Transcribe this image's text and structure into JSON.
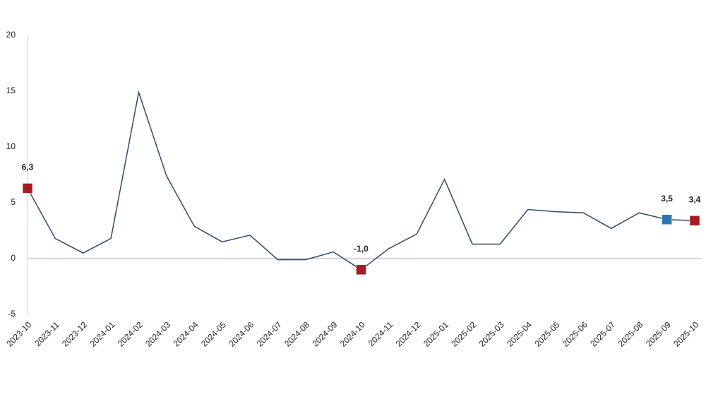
{
  "chart_data": {
    "type": "line",
    "categories": [
      "2023-10",
      "2023-11",
      "2023-12",
      "2024-01",
      "2024-02",
      "2024-03",
      "2024-04",
      "2024-05",
      "2024-06",
      "2024-07",
      "2024-08",
      "2024-09",
      "2024-10",
      "2024-11",
      "2024-12",
      "2025-01",
      "2025-02",
      "2025-03",
      "2025-04",
      "2025-05",
      "2025-06",
      "2025-07",
      "2025-08",
      "2025-09",
      "2025-10"
    ],
    "values": [
      6.3,
      1.8,
      0.5,
      1.8,
      14.9,
      7.4,
      2.9,
      1.5,
      2.1,
      -0.1,
      -0.1,
      0.6,
      -1.0,
      0.9,
      2.2,
      7.1,
      1.3,
      1.3,
      4.4,
      4.2,
      4.1,
      2.7,
      4.1,
      3.5,
      3.4
    ],
    "value_labels": [
      "6,3",
      null,
      null,
      null,
      null,
      null,
      null,
      null,
      null,
      null,
      null,
      null,
      "-1,0",
      null,
      null,
      null,
      null,
      null,
      null,
      null,
      null,
      null,
      null,
      "3,5",
      "3,4"
    ],
    "marker_colors": [
      "#a51c24",
      null,
      null,
      null,
      null,
      null,
      null,
      null,
      null,
      null,
      null,
      null,
      "#a51c24",
      null,
      null,
      null,
      null,
      null,
      null,
      null,
      null,
      null,
      null,
      "#2e75b6",
      "#a51c24"
    ],
    "color": "#2f4b68",
    "ylim": [
      -5,
      20
    ],
    "yticks": [
      -5,
      0,
      5,
      10,
      15,
      20
    ]
  }
}
